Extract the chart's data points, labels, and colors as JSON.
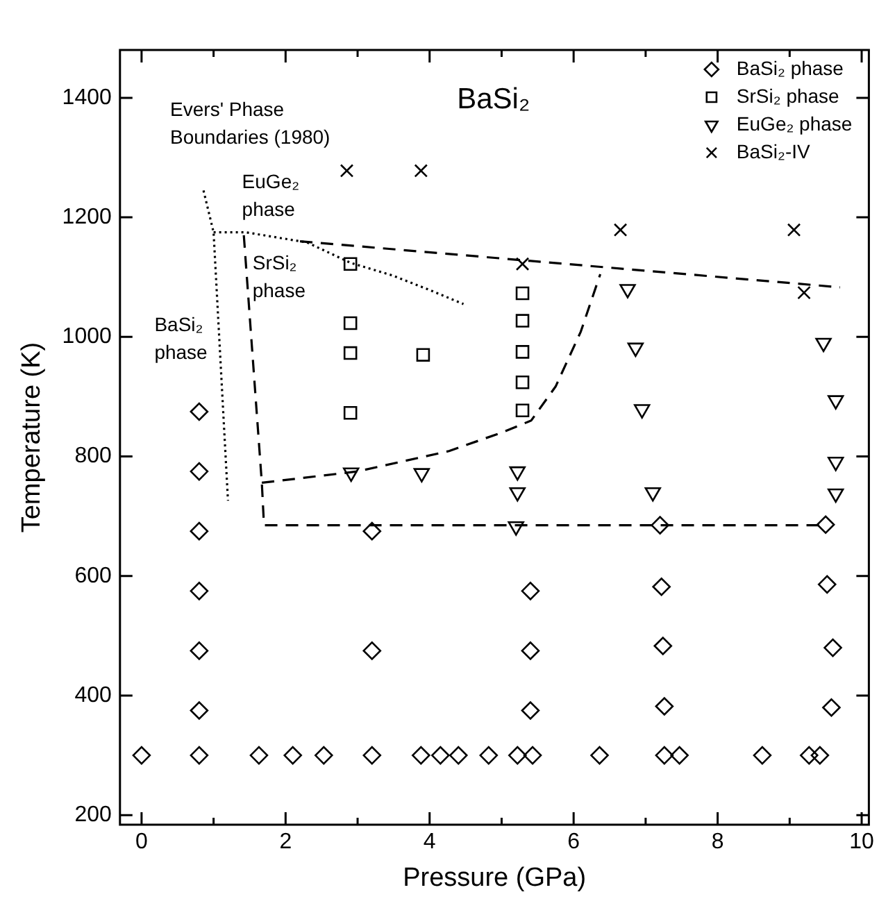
{
  "chart_data": {
    "type": "scatter",
    "title": "BaSi₂",
    "xlabel": "Pressure (GPa)",
    "ylabel": "Temperature (K)",
    "xlim": [
      -0.3,
      10.1
    ],
    "ylim": [
      184,
      1480
    ],
    "xticks": [
      0,
      {
        "value": 1,
        "label": null
      },
      2,
      {
        "value": 3,
        "label": null
      },
      4,
      {
        "value": 5,
        "label": null
      },
      6,
      {
        "value": 7,
        "label": null
      },
      8,
      {
        "value": 9,
        "label": null
      },
      10
    ],
    "yticks": [
      200,
      400,
      600,
      800,
      1000,
      1200,
      1400
    ],
    "grid": false,
    "legend": "top right",
    "series": [
      {
        "name": "BaSi₂ phase",
        "color": "#000000",
        "marker": "diamond",
        "x": [
          0.0,
          0.8,
          1.63,
          2.1,
          2.53,
          3.2,
          3.88,
          4.15,
          4.4,
          4.82,
          5.22,
          5.43,
          6.36,
          7.26,
          7.47,
          8.62,
          9.27,
          9.42,
          0.8,
          0.8,
          0.8,
          0.8,
          0.8,
          0.8,
          3.2,
          3.2,
          5.4,
          5.4,
          5.4,
          7.2,
          7.22,
          7.24,
          7.26,
          9.5,
          9.52,
          9.6,
          9.58
        ],
        "values": [
          300,
          300,
          300,
          300,
          300,
          300,
          300,
          300,
          300,
          300,
          300,
          300,
          300,
          300,
          300,
          300,
          300,
          300,
          375,
          475,
          575,
          675,
          775,
          875,
          475,
          675,
          375,
          475,
          575,
          685,
          582,
          483,
          382,
          686,
          586,
          480,
          380
        ]
      },
      {
        "name": "SrSi₂ phase",
        "color": "#000000",
        "marker": "square",
        "x": [
          2.9,
          2.9,
          2.9,
          2.9,
          3.91,
          5.29,
          5.29,
          5.29,
          5.29,
          5.29
        ],
        "values": [
          1122,
          1023,
          973,
          873,
          970,
          1073,
          1027,
          975,
          924,
          877
        ]
      },
      {
        "name": "EuGe₂ phase",
        "color": "#000000",
        "marker": "triangle",
        "x": [
          2.91,
          3.89,
          5.22,
          5.22,
          5.2,
          6.75,
          6.86,
          6.95,
          7.1,
          9.47,
          9.64,
          9.64,
          9.64
        ],
        "values": [
          773,
          772,
          775,
          740,
          683,
          1080,
          982,
          879,
          740,
          990,
          894,
          791,
          738
        ]
      },
      {
        "name": "BaSi₂-IV",
        "color": "#000000",
        "marker": "cross",
        "x": [
          2.85,
          3.88,
          5.29,
          6.65,
          9.06,
          9.2
        ],
        "values": [
          1278,
          1278,
          1122,
          1179,
          1179,
          1074
        ]
      },
      {
        "type": "line",
        "color": "#000000",
        "marker": "none",
        "line_style": "dashed",
        "x": [
          2.2,
          9.7
        ],
        "values": [
          1160,
          1083
        ]
      },
      {
        "type": "line",
        "color": "#000000",
        "marker": "none",
        "line_style": "dashed",
        "x": [
          1.42,
          1.67,
          1.7,
          9.5
        ],
        "values": [
          1170,
          756,
          685,
          685
        ]
      },
      {
        "type": "line",
        "color": "#000000",
        "marker": "none",
        "line_style": "dashed",
        "x": [
          1.67,
          3.0,
          4.27,
          5.0,
          5.41,
          5.75,
          6.1,
          6.37
        ],
        "values": [
          756,
          775,
          809,
          840,
          860,
          917,
          1009,
          1105
        ]
      },
      {
        "type": "line",
        "color": "#000000",
        "marker": "none",
        "line_style": "dotted",
        "x": [
          0.86,
          1.0,
          1.2
        ],
        "values": [
          1245,
          1175,
          726
        ]
      },
      {
        "type": "line",
        "color": "#000000",
        "marker": "none",
        "line_style": "dotted",
        "x": [
          1.0,
          1.45,
          2.3,
          2.9,
          3.48,
          4.01,
          4.47
        ],
        "values": [
          1175,
          1175,
          1158,
          1124,
          1103,
          1078,
          1055
        ]
      }
    ],
    "annotations": [
      "Evers' Phase\nBoundaries (1980)",
      "EuGe₂\nphase",
      "SrSi₂\nphase",
      "BaSi₂\nphase"
    ]
  }
}
